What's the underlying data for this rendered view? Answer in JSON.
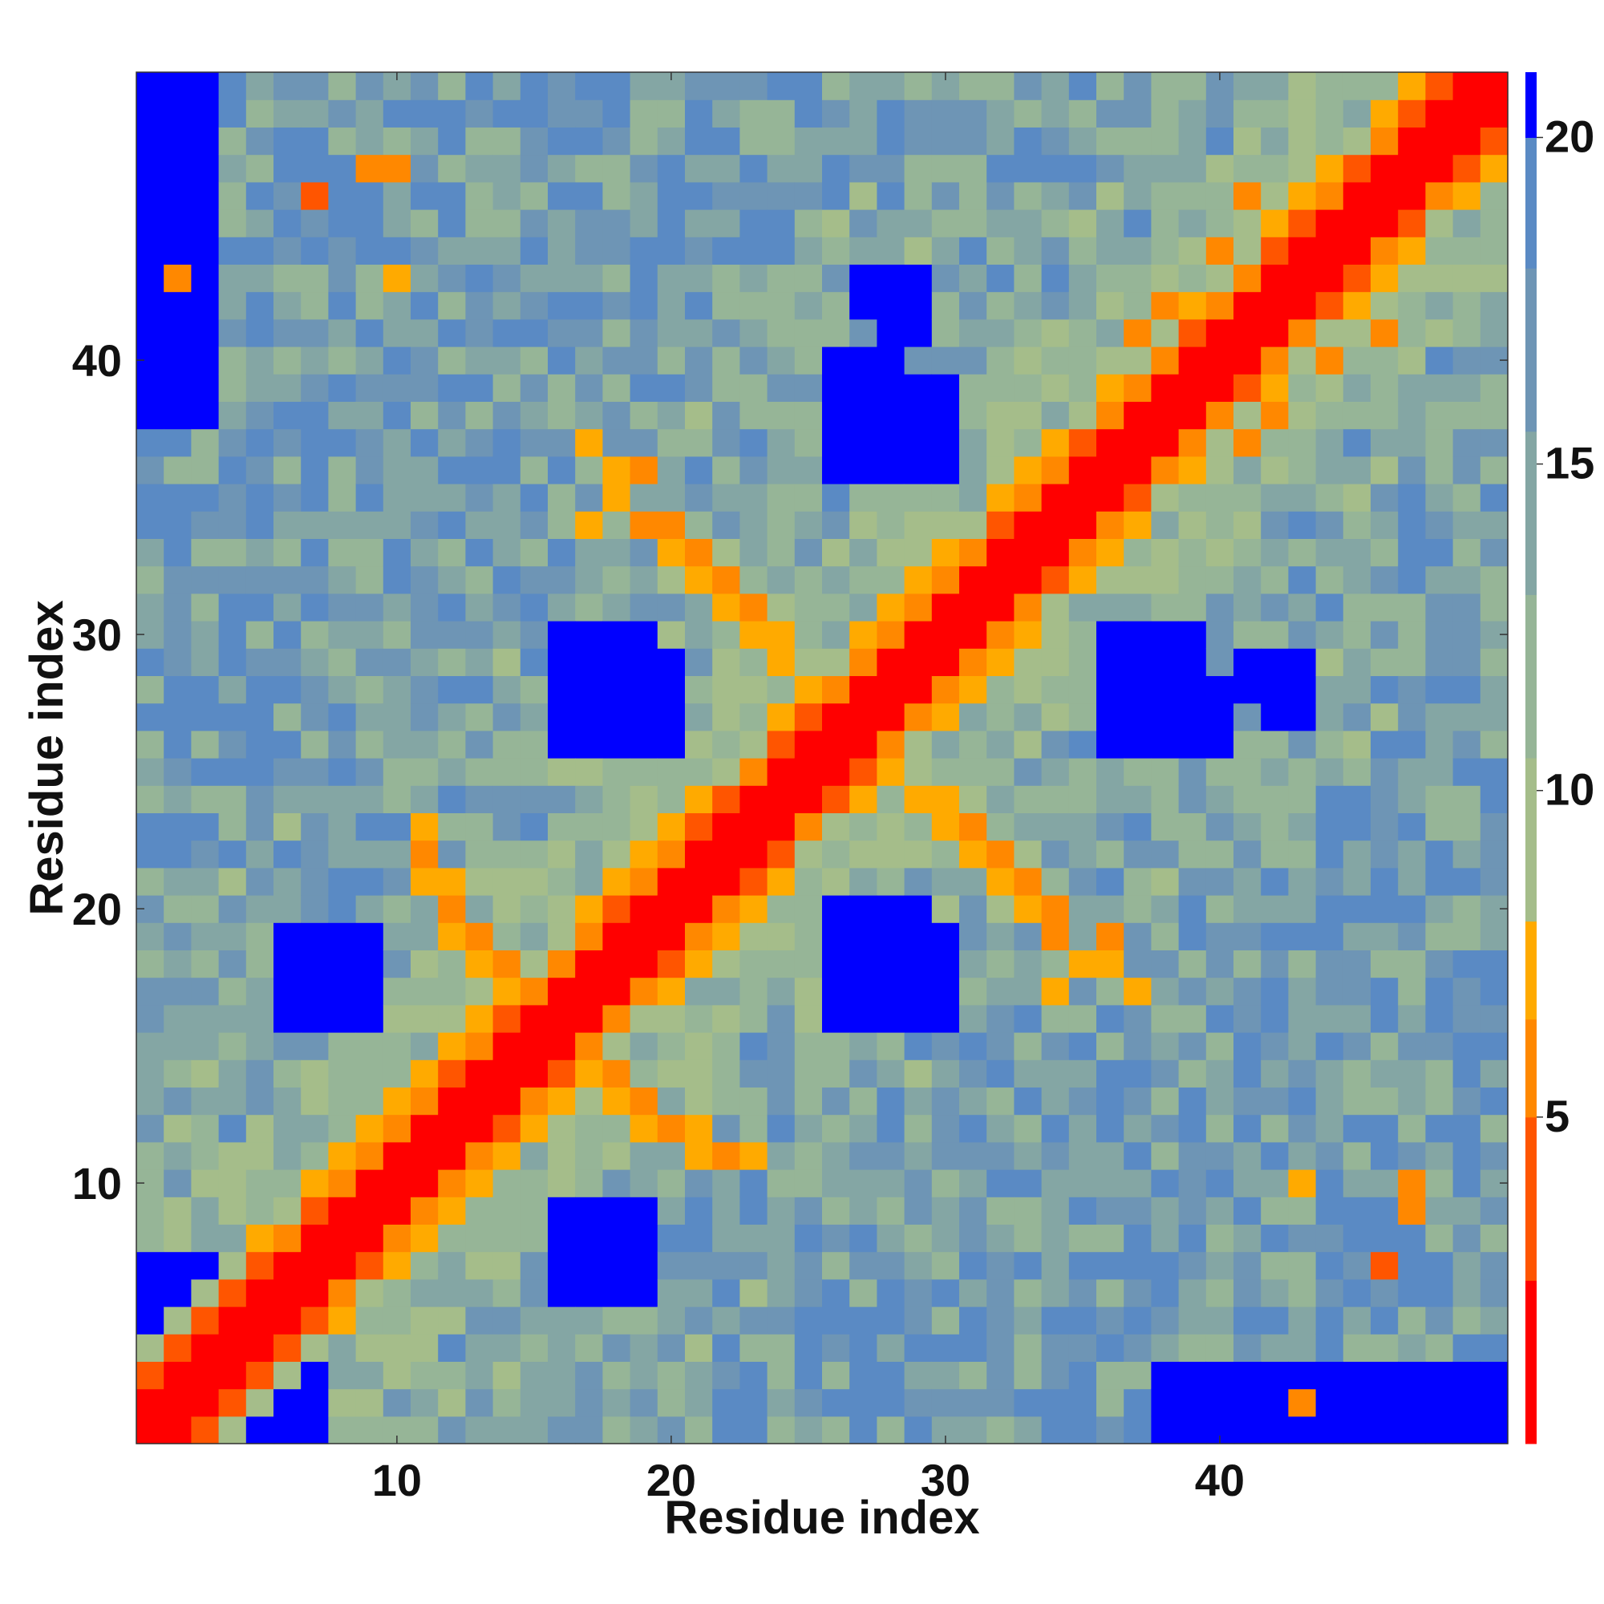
{
  "chart_data": {
    "type": "heatmap",
    "title": "",
    "xlabel": "Residue index",
    "ylabel": "Residue index",
    "xlim": [
      0.5,
      50.5
    ],
    "ylim": [
      0.5,
      50.5
    ],
    "x_ticks": [
      10,
      20,
      30,
      40
    ],
    "y_ticks": [
      10,
      20,
      30,
      40
    ],
    "n_residues": 50,
    "colorbar": {
      "ticks": [
        5,
        10,
        15,
        20
      ],
      "range": [
        0,
        21
      ],
      "bins": [
        {
          "min": 0,
          "max": 2.5,
          "color": "#ff0000"
        },
        {
          "min": 2.5,
          "max": 5,
          "color": "#ff5500"
        },
        {
          "min": 5,
          "max": 6.5,
          "color": "#ff8800"
        },
        {
          "min": 6.5,
          "max": 8,
          "color": "#ffaa00"
        },
        {
          "min": 8,
          "max": 10.5,
          "color": "#a5bd8a"
        },
        {
          "min": 10.5,
          "max": 13,
          "color": "#96b597"
        },
        {
          "min": 13,
          "max": 15.5,
          "color": "#84a6a4"
        },
        {
          "min": 15.5,
          "max": 18,
          "color": "#6e95b5"
        },
        {
          "min": 18,
          "max": 20,
          "color": "#5a8ac4"
        },
        {
          "min": 20,
          "max": 21,
          "color": "#0000ff"
        }
      ]
    },
    "matrix_rule": "symmetric contact/distance map; value(i,j) estimated per residue pair",
    "special_contacts": [
      {
        "i": 2,
        "j": 43,
        "v": 6.0
      },
      {
        "i": 7,
        "j": 46,
        "v": 4.5
      },
      {
        "i": 9,
        "j": 47,
        "v": 6.0
      },
      {
        "i": 10,
        "j": 43,
        "v": 7.0
      },
      {
        "i": 10,
        "j": 47,
        "v": 6.0
      },
      {
        "i": 11,
        "j": 21,
        "v": 7.0
      },
      {
        "i": 11,
        "j": 22,
        "v": 6.0
      },
      {
        "i": 11,
        "j": 23,
        "v": 7.0
      },
      {
        "i": 12,
        "j": 19,
        "v": 6.5
      },
      {
        "i": 12,
        "j": 20,
        "v": 6.0
      },
      {
        "i": 12,
        "j": 21,
        "v": 7.0
      },
      {
        "i": 13,
        "j": 18,
        "v": 6.5
      },
      {
        "i": 13,
        "j": 19,
        "v": 6.0
      },
      {
        "i": 14,
        "j": 17,
        "v": 6.5
      },
      {
        "i": 14,
        "j": 18,
        "v": 6.0
      },
      {
        "i": 17,
        "j": 34,
        "v": 7.0
      },
      {
        "i": 17,
        "j": 37,
        "v": 7.0
      },
      {
        "i": 18,
        "j": 35,
        "v": 6.5
      },
      {
        "i": 18,
        "j": 36,
        "v": 7.0
      },
      {
        "i": 19,
        "j": 34,
        "v": 6.0
      },
      {
        "i": 19,
        "j": 36,
        "v": 6.0
      },
      {
        "i": 20,
        "j": 33,
        "v": 6.5
      },
      {
        "i": 20,
        "j": 34,
        "v": 6.0
      },
      {
        "i": 21,
        "j": 32,
        "v": 6.5
      },
      {
        "i": 21,
        "j": 33,
        "v": 6.0
      },
      {
        "i": 22,
        "j": 31,
        "v": 7.0
      },
      {
        "i": 22,
        "j": 32,
        "v": 6.0
      },
      {
        "i": 23,
        "j": 30,
        "v": 7.0
      },
      {
        "i": 23,
        "j": 31,
        "v": 6.0
      },
      {
        "i": 24,
        "j": 29,
        "v": 6.5
      },
      {
        "i": 24,
        "j": 30,
        "v": 7.0
      },
      {
        "i": 37,
        "j": 41,
        "v": 6.0
      },
      {
        "i": 38,
        "j": 42,
        "v": 6.0
      },
      {
        "i": 40,
        "j": 44,
        "v": 6.0
      },
      {
        "i": 41,
        "j": 46,
        "v": 5.5
      }
    ]
  }
}
